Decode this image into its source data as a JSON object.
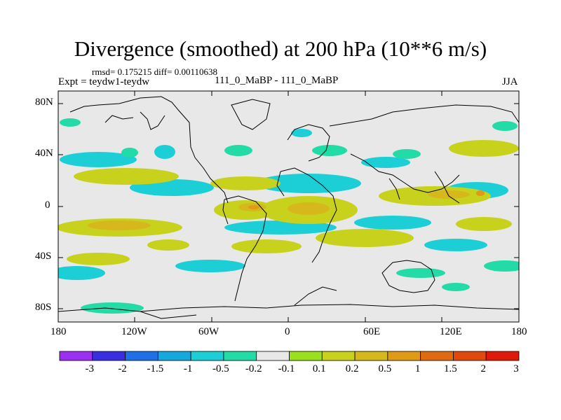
{
  "header": {
    "title": "Divergence (smoothed) at 200 hPa (10**6 m/s)",
    "stats": "rmsd= 0.175215 diff= 0.00110638",
    "expt": "Expt = teydw1-teydw",
    "subtitle": "111_0_MaBP - 111_0_MaBP",
    "season": "JJA"
  },
  "axes": {
    "y_ticks": [
      "80N",
      "40N",
      "0",
      "40S",
      "80S"
    ],
    "x_ticks": [
      "180",
      "120W",
      "60W",
      "0",
      "60E",
      "120E",
      "180"
    ]
  },
  "colorbar": {
    "labels": [
      "-3",
      "-2",
      "-1.5",
      "-1",
      "-0.5",
      "-0.2",
      "-0.1",
      "0.1",
      "0.2",
      "0.5",
      "1",
      "1.5",
      "2",
      "3"
    ],
    "colors": [
      "#9b30f0",
      "#3a2fe0",
      "#1f6fe6",
      "#14a8dc",
      "#1ccfd6",
      "#22dba6",
      "#e8e8e8",
      "#9be01c",
      "#c8d21c",
      "#d6b81c",
      "#e09a16",
      "#e06a12",
      "#e0480e",
      "#e01a0a"
    ]
  },
  "palette": {
    "background": "#e8e8e8",
    "outline": "#000000"
  }
}
